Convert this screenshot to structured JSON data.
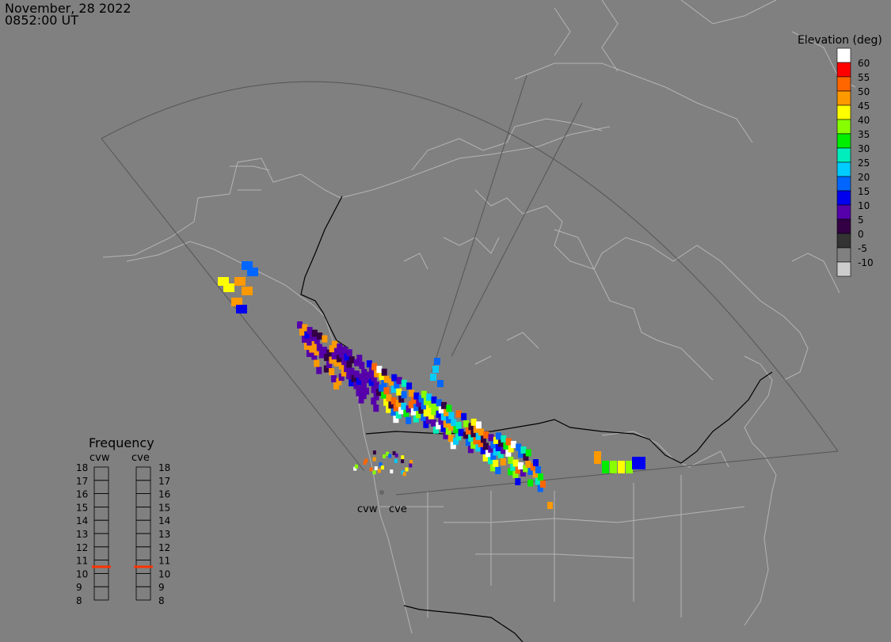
{
  "header": {
    "date": "November, 28 2022",
    "time": "0852:00 UT"
  },
  "elevation_scale": {
    "title": "Elevation (deg)",
    "entries": [
      {
        "label": "60",
        "color": "#ffffff"
      },
      {
        "label": "55",
        "color": "#ff0000"
      },
      {
        "label": "50",
        "color": "#ff6600"
      },
      {
        "label": "45",
        "color": "#ff9900"
      },
      {
        "label": "40",
        "color": "#ffff00"
      },
      {
        "label": "35",
        "color": "#88ff00"
      },
      {
        "label": "30",
        "color": "#00ee00"
      },
      {
        "label": "25",
        "color": "#00eebb"
      },
      {
        "label": "20",
        "color": "#00ccff"
      },
      {
        "label": "15",
        "color": "#0066ff"
      },
      {
        "label": "10",
        "color": "#0000ee"
      },
      {
        "label": "5",
        "color": "#5500aa"
      },
      {
        "label": "0",
        "color": "#330044"
      },
      {
        "label": "-5",
        "color": "#333333"
      },
      {
        "label": "-10",
        "color": "#808080"
      },
      {
        "label": "",
        "color": "#cccccc"
      }
    ]
  },
  "frequency": {
    "title": "Frequency",
    "radars": [
      {
        "label": "cvw",
        "value": 10.5
      },
      {
        "label": "cve",
        "value": 10.5
      }
    ],
    "levels": [
      "18",
      "17",
      "16",
      "15",
      "14",
      "13",
      "12",
      "11",
      "10",
      "9",
      "8"
    ],
    "marker_color": "#ff3300"
  },
  "radar_sites": [
    {
      "label": "cvw"
    },
    {
      "label": "cve"
    }
  ],
  "colors": {
    "background": "#808080",
    "coastline": "#b8b8b8",
    "border": "#000000",
    "fov": "#555555"
  }
}
